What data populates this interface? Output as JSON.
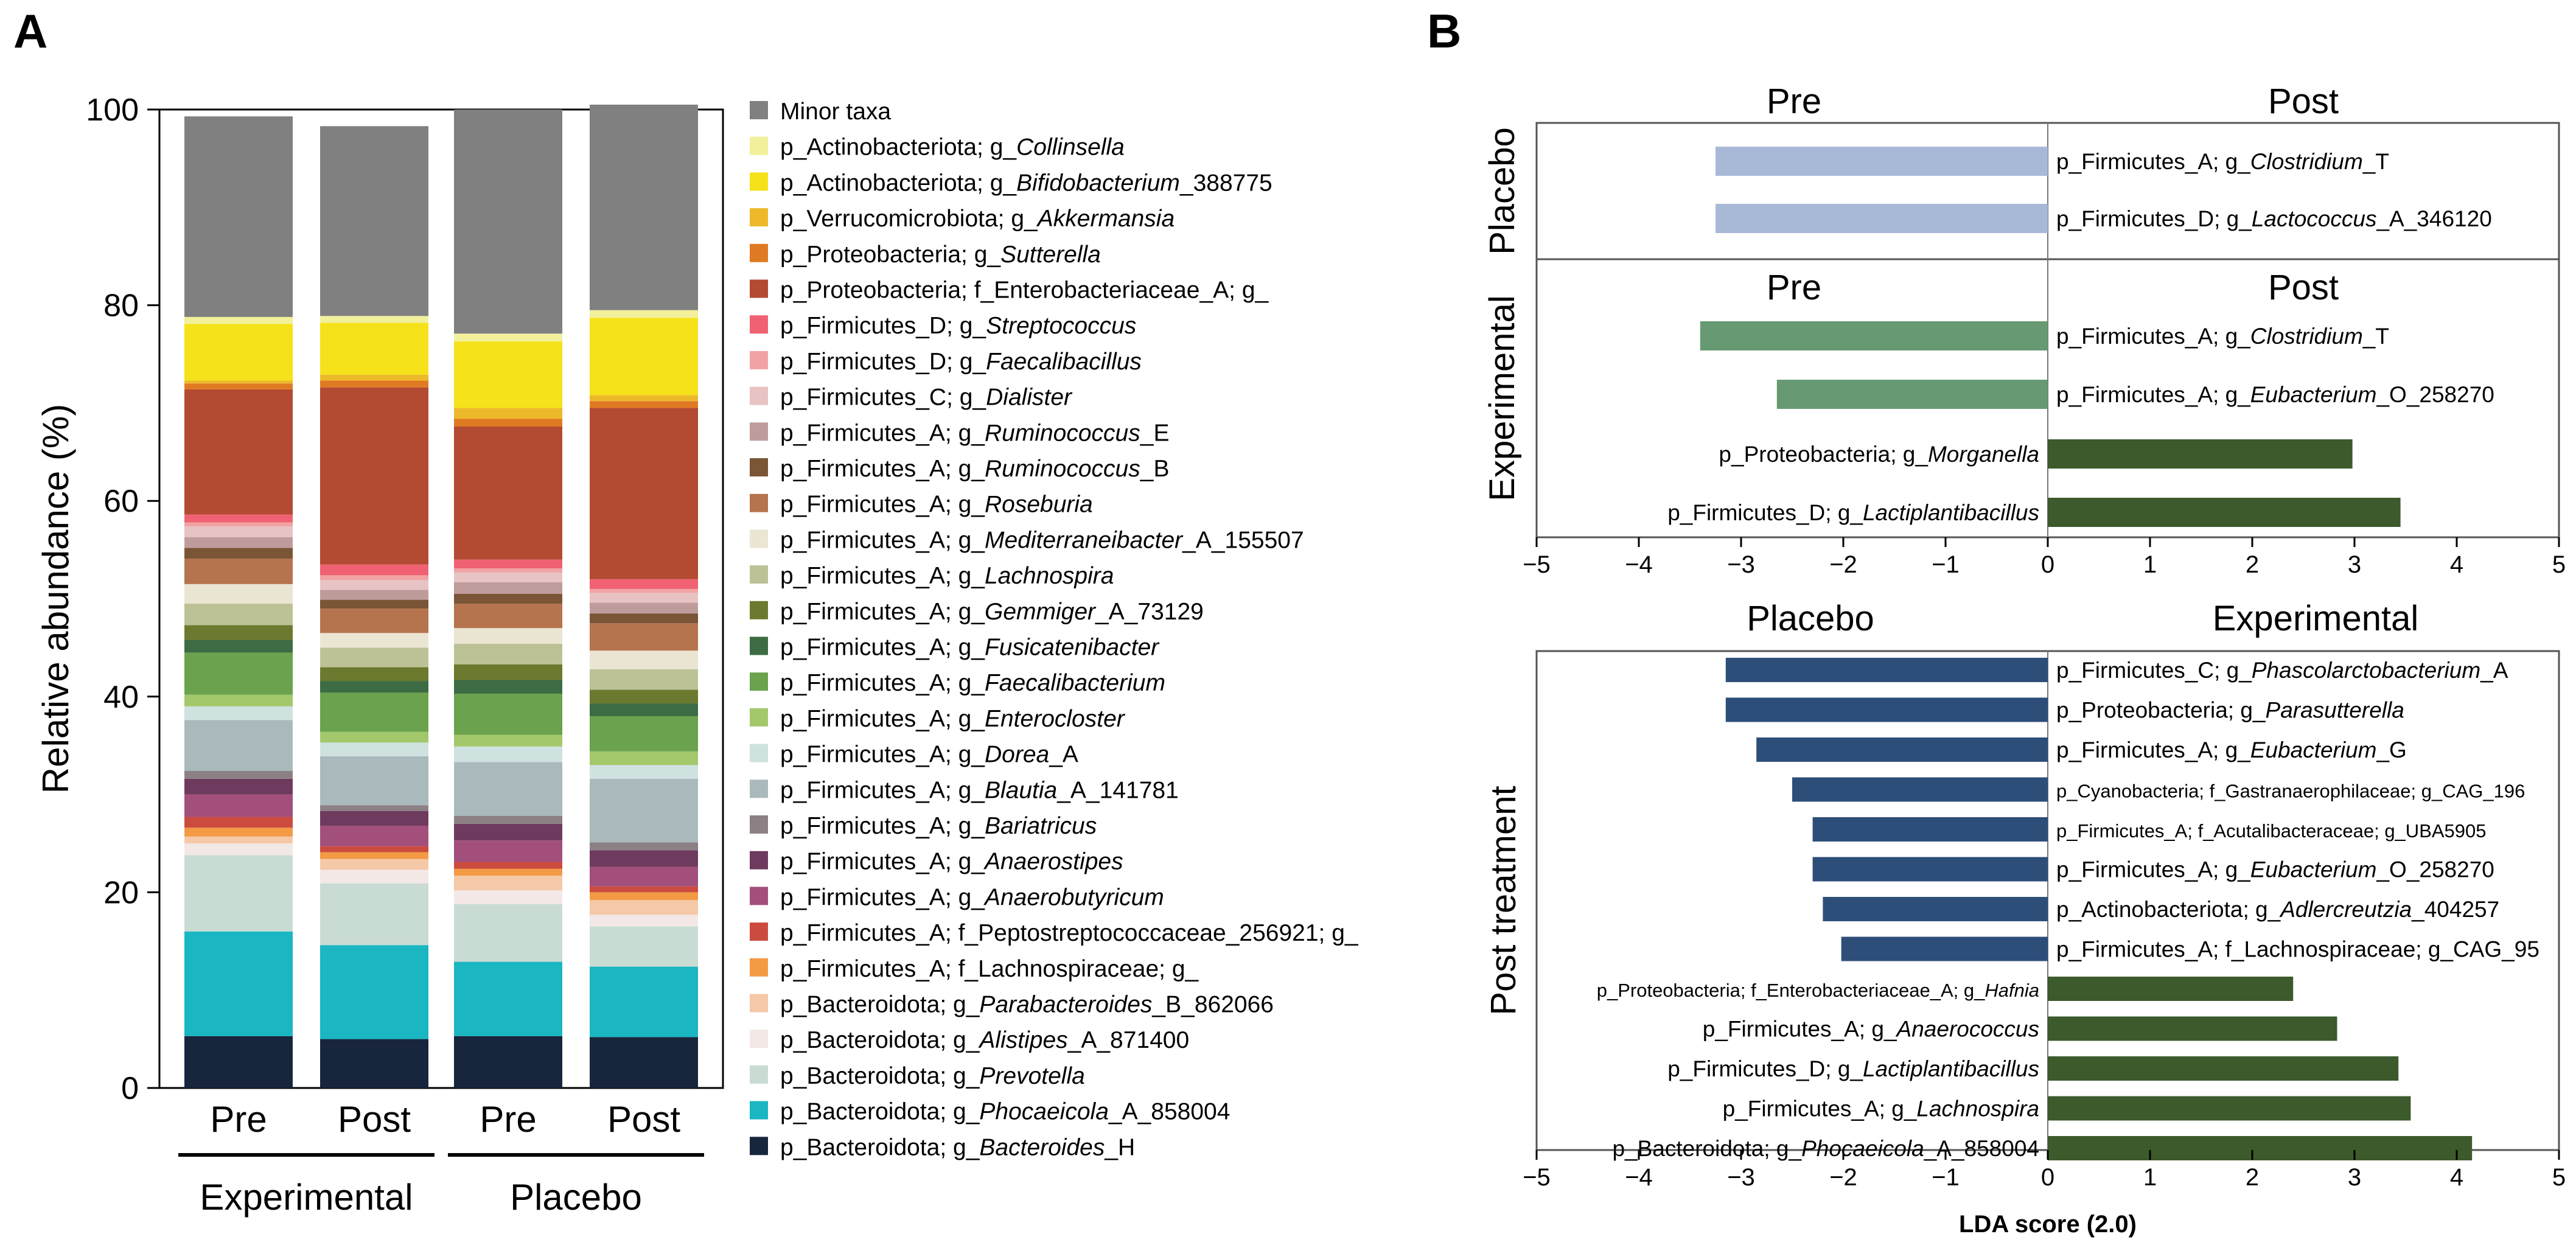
{
  "panel_a_letter": "A",
  "panel_b_letter": "B",
  "chart_data": [
    {
      "type": "bar",
      "subtype": "stacked-100",
      "title": "",
      "xlabel": "",
      "ylabel": "Relative abundance (%)",
      "ylim": [
        0,
        100
      ],
      "yticks": [
        "0",
        "20",
        "40",
        "60",
        "80",
        "100"
      ],
      "categories": [
        "Pre",
        "Post",
        "Pre",
        "Post"
      ],
      "groups": [
        {
          "label": "Experimental",
          "bars": [
            0,
            1
          ]
        },
        {
          "label": "Placebo",
          "bars": [
            2,
            3
          ]
        }
      ],
      "series": [
        {
          "name": "p_Bacteroidota; g_Bacteroides_H",
          "pre": "p_Bacteroidota; g_",
          "it": "Bacteroides",
          "post": "_H",
          "color": "#17263c",
          "values": [
            5.3,
            5.0,
            5.3,
            5.2
          ]
        },
        {
          "name": "p_Bacteroidota; g_Phocaeicola_A_858004",
          "pre": "p_Bacteroidota; g_",
          "it": "Phocaeicola",
          "post": "_A_858004",
          "color": "#1ab6c2",
          "values": [
            10.7,
            9.6,
            7.6,
            7.2
          ]
        },
        {
          "name": "p_Bacteroidota; g_Prevotella",
          "pre": "p_Bacteroidota; g_",
          "it": "Prevotella",
          "post": "",
          "color": "#c9dcd4",
          "values": [
            7.8,
            6.3,
            5.9,
            4.1
          ]
        },
        {
          "name": "p_Bacteroidota; g_Alistipes_A_871400",
          "pre": "p_Bacteroidota; g_",
          "it": "Alistipes",
          "post": "_A_871400",
          "color": "#f3e8e6",
          "values": [
            1.2,
            1.4,
            1.4,
            1.2
          ]
        },
        {
          "name": "p_Bacteroidota; g_Parabacteroides_B_862066",
          "pre": "p_Bacteroidota; g_",
          "it": "Parabacteroides",
          "post": "_B_862066",
          "color": "#f5c8a8",
          "values": [
            0.7,
            1.1,
            1.5,
            1.5
          ]
        },
        {
          "name": "p_Firmicutes_A; f_Lachnospiraceae; g_",
          "pre": "p_Firmicutes_A; f_Lachnospiraceae; g_",
          "it": "",
          "post": "",
          "color": "#f39a45",
          "values": [
            0.9,
            0.7,
            0.7,
            0.8
          ]
        },
        {
          "name": "p_Firmicutes_A; f_Peptostreptococcaceae_256921; g_",
          "pre": "p_Firmicutes_A; f_Peptostreptococcaceae_256921; g_",
          "it": "",
          "post": "",
          "color": "#cc4b3f",
          "values": [
            1.1,
            0.6,
            0.7,
            0.6
          ]
        },
        {
          "name": "p_Firmicutes_A; g_Anaerobutyricum",
          "pre": "p_Firmicutes_A; g_",
          "it": "Anaerobutyricum",
          "post": "",
          "color": "#a24f7b",
          "values": [
            2.3,
            2.1,
            2.2,
            2.0
          ]
        },
        {
          "name": "p_Firmicutes_A; g_Anaerostipes",
          "pre": "p_Firmicutes_A; g_",
          "it": "Anaerostipes",
          "post": "",
          "color": "#6e3a5e",
          "values": [
            1.6,
            1.5,
            1.7,
            1.7
          ]
        },
        {
          "name": "p_Firmicutes_A; g_Bariatricus",
          "pre": "p_Firmicutes_A; g_",
          "it": "Bariatricus",
          "post": "",
          "color": "#8c8085",
          "values": [
            0.8,
            0.6,
            0.8,
            0.8
          ]
        },
        {
          "name": "p_Firmicutes_A; g_Blautia_A_141781",
          "pre": "p_Firmicutes_A; g_",
          "it": "Blautia",
          "post": "_A_141781",
          "color": "#a9b9bc",
          "values": [
            5.2,
            5.0,
            5.5,
            6.5
          ]
        },
        {
          "name": "p_Firmicutes_A; g_Dorea_A",
          "pre": "p_Firmicutes_A; g_",
          "it": "Dorea",
          "post": "_A",
          "color": "#cfe2e0",
          "values": [
            1.4,
            1.4,
            1.6,
            1.4
          ]
        },
        {
          "name": "p_Firmicutes_A; g_Enterocloster",
          "pre": "p_Firmicutes_A; g_",
          "it": "Enterocloster",
          "post": "",
          "color": "#a3c86b",
          "values": [
            1.2,
            1.1,
            1.2,
            1.4
          ]
        },
        {
          "name": "p_Firmicutes_A; g_Faecalibacterium",
          "pre": "p_Firmicutes_A; g_",
          "it": "Faecalibacterium",
          "post": "",
          "color": "#6aa24d",
          "values": [
            4.3,
            4.0,
            4.2,
            3.6
          ]
        },
        {
          "name": "p_Firmicutes_A; g_Fusicatenibacter",
          "pre": "p_Firmicutes_A; g_",
          "it": "Fusicatenibacter",
          "post": "",
          "color": "#3d6b43",
          "values": [
            1.3,
            1.2,
            1.4,
            1.3
          ]
        },
        {
          "name": "p_Firmicutes_A; g_Gemmiger_A_73129",
          "pre": "p_Firmicutes_A; g_",
          "it": "Gemmiger",
          "post": "_A_73129",
          "color": "#6b7a2e",
          "values": [
            1.5,
            1.4,
            1.6,
            1.4
          ]
        },
        {
          "name": "p_Firmicutes_A; g_Lachnospira",
          "pre": "p_Firmicutes_A; g_",
          "it": "Lachnospira",
          "post": "",
          "color": "#bcc295",
          "values": [
            2.2,
            2.0,
            2.1,
            2.1
          ]
        },
        {
          "name": "p_Firmicutes_A; g_Mediterraneibacter_A_155507",
          "pre": "p_Firmicutes_A; g_",
          "it": "Mediterraneibacter",
          "post": "_A_155507",
          "color": "#ebe5d3",
          "values": [
            2.0,
            1.5,
            1.6,
            1.9
          ]
        },
        {
          "name": "p_Firmicutes_A; g_Roseburia",
          "pre": "p_Firmicutes_A; g_",
          "it": "Roseburia",
          "post": "",
          "color": "#b5744e",
          "values": [
            2.6,
            2.5,
            2.5,
            2.8
          ]
        },
        {
          "name": "p_Firmicutes_A; g_Ruminococcus_B",
          "pre": "p_Firmicutes_A; g_",
          "it": "Ruminococcus",
          "post": "_B",
          "color": "#7a5536",
          "values": [
            1.1,
            0.9,
            1.0,
            1.0
          ]
        },
        {
          "name": "p_Firmicutes_A; g_Ruminococcus_E",
          "pre": "p_Firmicutes_A; g_",
          "it": "Ruminococcus",
          "post": "_E",
          "color": "#bf9c9c",
          "values": [
            1.1,
            1.0,
            1.2,
            1.1
          ]
        },
        {
          "name": "p_Firmicutes_C; g_Dialister",
          "pre": "p_Firmicutes_C; g_",
          "it": "Dialister",
          "post": "",
          "color": "#e8c3c4",
          "values": [
            1.1,
            1.0,
            1.0,
            1.0
          ]
        },
        {
          "name": "p_Firmicutes_D; g_Faecalibacillus",
          "pre": "p_Firmicutes_D; g_",
          "it": "Faecalibacillus",
          "post": "",
          "color": "#f1a3a3",
          "values": [
            0.4,
            0.5,
            0.4,
            0.4
          ]
        },
        {
          "name": "p_Firmicutes_D; g_Streptococcus",
          "pre": "p_Firmicutes_D; g_",
          "it": "Streptococcus",
          "post": "",
          "color": "#f06273",
          "values": [
            0.8,
            1.1,
            0.9,
            1.0
          ]
        },
        {
          "name": "p_Proteobacteria; f_Enterobacteriaceae_A; g_",
          "pre": "p_Proteobacteria; f_Enterobacteriaceae_A; g_",
          "it": "",
          "post": "",
          "color": "#b34a32",
          "values": [
            12.8,
            18.1,
            13.6,
            17.5
          ]
        },
        {
          "name": "p_Proteobacteria; g_Sutterella",
          "pre": "p_Proteobacteria; g_",
          "it": "Sutterella",
          "post": "",
          "color": "#e07a22",
          "values": [
            0.6,
            0.7,
            0.8,
            0.7
          ]
        },
        {
          "name": "p_Verrucomicrobiota; g_Akkermansia",
          "pre": "p_Verrucomicrobiota; g_",
          "it": "Akkermansia",
          "post": "",
          "color": "#edb92b",
          "values": [
            0.3,
            0.6,
            1.1,
            0.6
          ]
        },
        {
          "name": "p_Actinobacteriota; g_Bifidobacterium_388775",
          "pre": "p_Actinobacteriota; g_",
          "it": "Bifidobacterium",
          "post": "_388775",
          "color": "#f5e21a",
          "values": [
            5.8,
            5.3,
            6.8,
            7.9
          ]
        },
        {
          "name": "p_Actinobacteriota; g_Collinsella",
          "pre": "p_Actinobacteriota; g_",
          "it": "Collinsella",
          "post": "",
          "color": "#f2f09b",
          "values": [
            0.7,
            0.7,
            0.8,
            0.8
          ]
        },
        {
          "name": "Minor taxa",
          "pre": "Minor taxa",
          "it": "",
          "post": "",
          "color": "#808080",
          "values": [
            20.5,
            19.4,
            22.9,
            21.0
          ]
        }
      ]
    },
    {
      "type": "bar",
      "subtype": "horizontal-lda",
      "title": "",
      "xlabel": "",
      "xlim": [
        -5,
        5
      ],
      "xticks": [
        "−5",
        "−4",
        "−3",
        "−2",
        "−1",
        "0",
        "1",
        "2",
        "3",
        "4",
        "5"
      ],
      "side_labels": {
        "left": "Pre",
        "right": "Post"
      },
      "panels": [
        {
          "ylabel": "Placebo",
          "features": [
            {
              "pre": "p_Firmicutes_A; g_",
              "it": "Clostridium",
              "post": "_T",
              "value": -3.25,
              "color": "#a8b9d8"
            },
            {
              "pre": "p_Firmicutes_D; g_",
              "it": "Lactococcus",
              "post": "_A_346120",
              "value": -3.25,
              "color": "#a8b9d8"
            }
          ]
        },
        {
          "ylabel": "Experimental",
          "features": [
            {
              "pre": "p_Firmicutes_A; g_",
              "it": "Clostridium",
              "post": "_T",
              "value": -3.4,
              "color": "#679a72"
            },
            {
              "pre": "p_Firmicutes_A; g_",
              "it": "Eubacterium",
              "post": "_O_258270",
              "value": -2.65,
              "color": "#679a72"
            },
            {
              "pre": "p_Proteobacteria; g_",
              "it": "Morganella",
              "post": "",
              "value": 2.98,
              "color": "#3c5a2c"
            },
            {
              "pre": "p_Firmicutes_D; g_",
              "it": "Lactiplantibacillus",
              "post": "",
              "value": 3.45,
              "color": "#3c5a2c"
            }
          ]
        }
      ]
    },
    {
      "type": "bar",
      "subtype": "horizontal-lda",
      "title": "",
      "ylabel": "Post treatment",
      "xlabel": "LDA score (2.0)",
      "xlim": [
        -5,
        5
      ],
      "xticks": [
        "−5",
        "−4",
        "−3",
        "−2",
        "−1",
        "0",
        "1",
        "2",
        "3",
        "4",
        "5"
      ],
      "side_labels": {
        "left": "Placebo",
        "right": "Experimental"
      },
      "features": [
        {
          "pre": "p_Firmicutes_C; g_",
          "it": "Phascolarctobacterium",
          "post": "_A",
          "value": -3.15,
          "color": "#2d4e79",
          "small": false
        },
        {
          "pre": "p_Proteobacteria; g_",
          "it": "Parasutterella",
          "post": "",
          "value": -3.15,
          "color": "#2d4e79",
          "small": false
        },
        {
          "pre": "p_Firmicutes_A; g_",
          "it": "Eubacterium",
          "post": "_G",
          "value": -2.85,
          "color": "#2d4e79",
          "small": false
        },
        {
          "pre": "p_Cyanobacteria; f_Gastranaerophilaceae; g_CAG_196",
          "it": "",
          "post": "",
          "value": -2.5,
          "color": "#2d4e79",
          "small": true
        },
        {
          "pre": "p_Firmicutes_A; f_Acutalibacteraceae; g_UBA5905",
          "it": "",
          "post": "",
          "value": -2.3,
          "color": "#2d4e79",
          "small": true
        },
        {
          "pre": "p_Firmicutes_A; g_",
          "it": "Eubacterium",
          "post": "_O_258270",
          "value": -2.3,
          "color": "#2d4e79",
          "small": false
        },
        {
          "pre": "p_Actinobacteriota; g_",
          "it": "Adlercreutzia",
          "post": "_404257",
          "value": -2.2,
          "color": "#2d4e79",
          "small": false
        },
        {
          "pre": "p_Firmicutes_A; f_Lachnospiraceae; g_CAG_95",
          "it": "",
          "post": "",
          "value": -2.02,
          "color": "#2d4e79",
          "small": false
        },
        {
          "pre": "p_Proteobacteria; f_Enterobacteriaceae_A; g_",
          "it": "Hafnia",
          "post": "",
          "value": 2.4,
          "color": "#3c5a2c",
          "small": true
        },
        {
          "pre": "p_Firmicutes_A; g_",
          "it": "Anaerococcus",
          "post": "",
          "value": 2.83,
          "color": "#3c5a2c",
          "small": false
        },
        {
          "pre": "p_Firmicutes_D; g_",
          "it": "Lactiplantibacillus",
          "post": "",
          "value": 3.43,
          "color": "#3c5a2c",
          "small": false
        },
        {
          "pre": "p_Firmicutes_A; g_",
          "it": "Lachnospira",
          "post": "",
          "value": 3.55,
          "color": "#3c5a2c",
          "small": false
        },
        {
          "pre": "p_Bacteroidota; g_",
          "it": "Phocaeicola",
          "post": "_A_858004",
          "value": 4.15,
          "color": "#3c5a2c",
          "small": false
        }
      ]
    }
  ]
}
